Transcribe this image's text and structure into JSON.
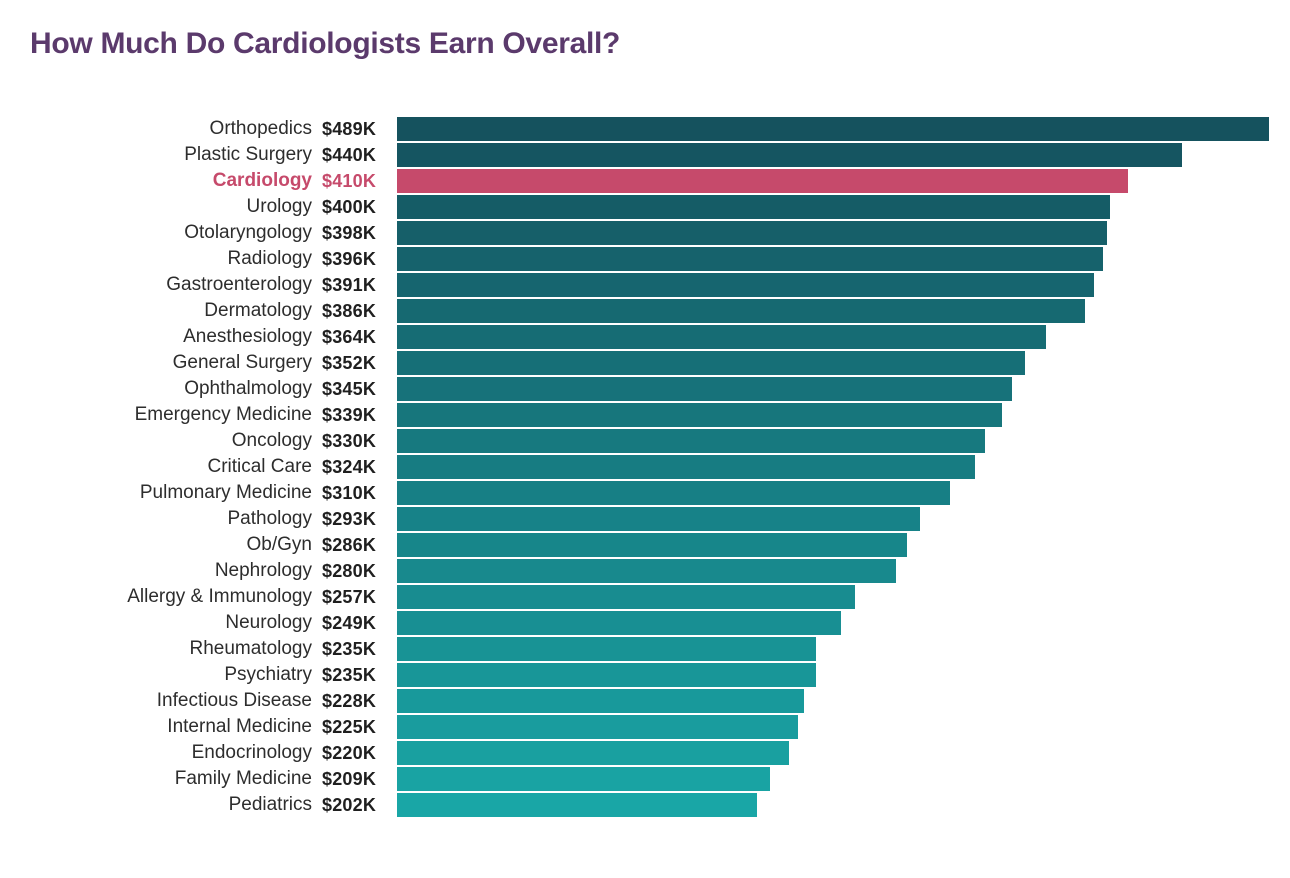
{
  "title": "How Much Do Cardiologists Earn Overall?",
  "colors": {
    "title": "#5B3A6C",
    "bar_gradient_start": "#15525E",
    "bar_gradient_end": "#19A6A6",
    "highlight": "#C64A6B",
    "category_text": "#2D2D2D",
    "value_text": "#1F1F1F"
  },
  "chart_data": {
    "type": "bar",
    "orientation": "horizontal",
    "title": "How Much Do Cardiologists Earn Overall?",
    "xlabel": "",
    "ylabel": "",
    "xlim": [
      0,
      489
    ],
    "grid": false,
    "legend": false,
    "unit": "USD thousands per year",
    "highlight_category": "Cardiology",
    "categories": [
      "Orthopedics",
      "Plastic Surgery",
      "Cardiology",
      "Urology",
      "Otolaryngology",
      "Radiology",
      "Gastroenterology",
      "Dermatology",
      "Anesthesiology",
      "General Surgery",
      "Ophthalmology",
      "Emergency Medicine",
      "Oncology",
      "Critical Care",
      "Pulmonary Medicine",
      "Pathology",
      "Ob/Gyn",
      "Nephrology",
      "Allergy & Immunology",
      "Neurology",
      "Rheumatology",
      "Psychiatry",
      "Infectious Disease",
      "Internal Medicine",
      "Endocrinology",
      "Family Medicine",
      "Pediatrics"
    ],
    "values": [
      489,
      440,
      410,
      400,
      398,
      396,
      391,
      386,
      364,
      352,
      345,
      339,
      330,
      324,
      310,
      293,
      286,
      280,
      257,
      249,
      235,
      235,
      228,
      225,
      220,
      209,
      202
    ],
    "value_labels": [
      "$489K",
      "$440K",
      "$410K",
      "$400K",
      "$398K",
      "$396K",
      "$391K",
      "$386K",
      "$364K",
      "$352K",
      "$345K",
      "$339K",
      "$330K",
      "$324K",
      "$310K",
      "$293K",
      "$286K",
      "$280K",
      "$257K",
      "$249K",
      "$235K",
      "$235K",
      "$228K",
      "$225K",
      "$220K",
      "$209K",
      "$202K"
    ]
  }
}
